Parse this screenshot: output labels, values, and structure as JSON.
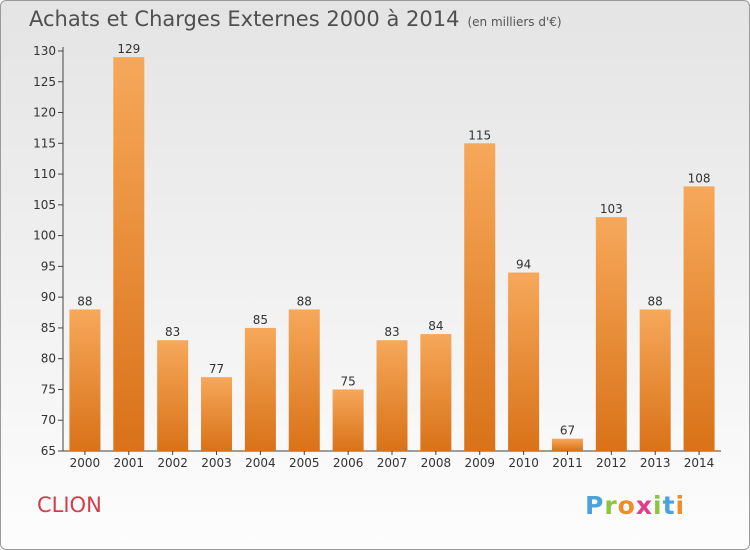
{
  "title": "Achats et Charges Externes 2000 à 2014",
  "subtitle": "(en milliers d'€)",
  "commune": "CLION",
  "logo": {
    "text": "Proxiti"
  },
  "colors": {
    "bar_light": "#f6a85a",
    "bar_dark": "#d97218",
    "commune": "#d63c4a"
  },
  "chart_data": {
    "type": "bar",
    "title": "Achats et Charges Externes 2000 à 2014",
    "subtitle": "(en milliers d'€)",
    "xlabel": "",
    "ylabel": "",
    "categories": [
      "2000",
      "2001",
      "2002",
      "2003",
      "2004",
      "2005",
      "2006",
      "2007",
      "2008",
      "2009",
      "2010",
      "2011",
      "2012",
      "2013",
      "2014"
    ],
    "values": [
      88,
      129,
      83,
      77,
      85,
      88,
      75,
      83,
      84,
      115,
      94,
      67,
      103,
      88,
      108
    ],
    "ylim": [
      65,
      130
    ],
    "yticks": [
      65,
      70,
      75,
      80,
      85,
      90,
      95,
      100,
      105,
      110,
      115,
      120,
      125,
      130
    ],
    "grid": false,
    "legend": "none"
  }
}
